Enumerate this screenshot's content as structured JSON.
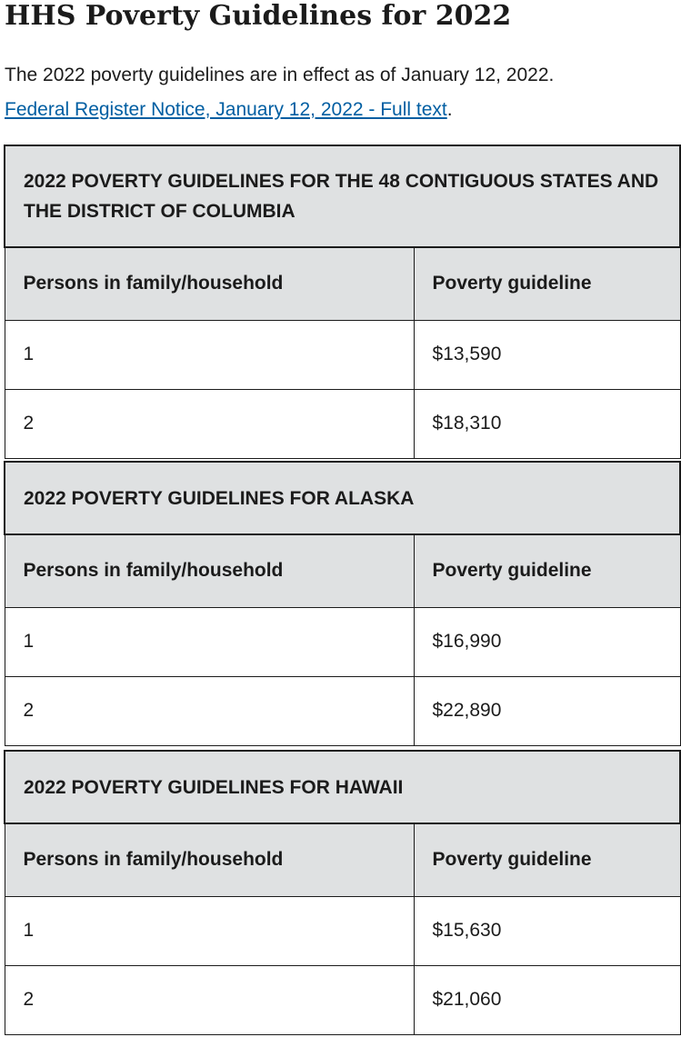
{
  "page": {
    "title": "HHS Poverty Guidelines for 2022",
    "intro_text": "The 2022 poverty guidelines are in effect as of January 12, 2022.",
    "link_text": "Federal Register Notice, January 12, 2022 - Full text",
    "link_suffix": "."
  },
  "tables": [
    {
      "caption": "2022 POVERTY GUIDELINES FOR THE 48 CONTIGUOUS STATES AND THE DISTRICT OF COLUMBIA",
      "headers": [
        "Persons in family/household",
        "Poverty guideline"
      ],
      "rows": [
        [
          "1",
          "$13,590"
        ],
        [
          "2",
          "$18,310"
        ]
      ]
    },
    {
      "caption": "2022 POVERTY GUIDELINES FOR ALASKA",
      "headers": [
        "Persons in family/household",
        "Poverty guideline"
      ],
      "rows": [
        [
          "1",
          "$16,990"
        ],
        [
          "2",
          "$22,890"
        ]
      ]
    },
    {
      "caption": "2022 POVERTY GUIDELINES FOR HAWAII",
      "headers": [
        "Persons in family/household",
        "Poverty guideline"
      ],
      "rows": [
        [
          "1",
          "$15,630"
        ],
        [
          "2",
          "$21,060"
        ]
      ]
    }
  ],
  "colors": {
    "link": "#005ea2",
    "header_bg": "#dfe1e2",
    "text": "#1b1b1b",
    "border": "#1b1b1b"
  }
}
